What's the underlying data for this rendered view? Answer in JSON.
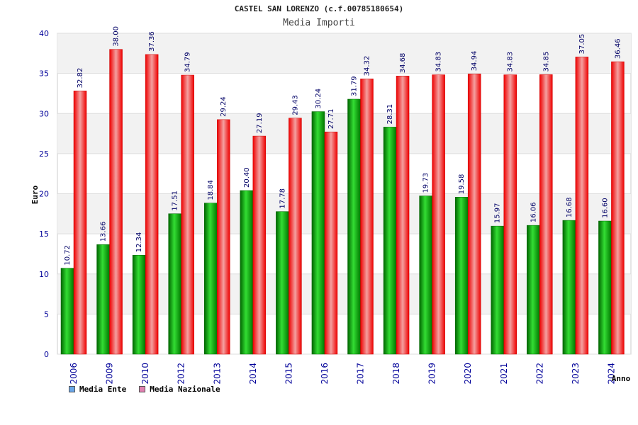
{
  "chart_data": {
    "type": "bar",
    "title": "CASTEL SAN LORENZO (c.f.00785180654)",
    "subtitle": "Media Importi",
    "xlabel": "Anno",
    "ylabel": "Euro",
    "ylim": [
      0,
      40
    ],
    "yticks": [
      0,
      5,
      10,
      15,
      20,
      25,
      30,
      35,
      40
    ],
    "grid": true,
    "legend_position": "bottom-left",
    "categories": [
      "2006",
      "2009",
      "2010",
      "2012",
      "2013",
      "2014",
      "2015",
      "2016",
      "2017",
      "2018",
      "2019",
      "2020",
      "2021",
      "2022",
      "2023",
      "2024"
    ],
    "series": [
      {
        "name": "Media Ente",
        "color": "#00aa00",
        "legend_color": "#6aa6e8",
        "values": [
          10.72,
          13.66,
          12.34,
          17.51,
          18.84,
          20.4,
          17.78,
          30.24,
          31.79,
          28.31,
          19.73,
          19.58,
          15.97,
          16.06,
          16.68,
          16.6
        ],
        "labels": [
          "10.72",
          "13.66",
          "12.34",
          "17.51",
          "18.84",
          "20.40",
          "17.78",
          "30.24",
          "31.79",
          "28.31",
          "19.73",
          "19.58",
          "15.97",
          "16.06",
          "16.68",
          "16.60"
        ]
      },
      {
        "name": "Media Nazionale",
        "color": "#ee0000",
        "legend_color": "#e080b0",
        "values": [
          32.82,
          38.0,
          37.36,
          34.79,
          29.24,
          27.19,
          29.43,
          27.71,
          34.32,
          34.68,
          34.83,
          34.94,
          34.83,
          34.85,
          37.05,
          36.46
        ],
        "labels": [
          "32.82",
          "38.00",
          "37.36",
          "34.79",
          "29.24",
          "27.19",
          "29.43",
          "27.71",
          "34.32",
          "34.68",
          "34.83",
          "34.94",
          "34.83",
          "34.85",
          "37.05",
          "36.46"
        ]
      }
    ]
  }
}
